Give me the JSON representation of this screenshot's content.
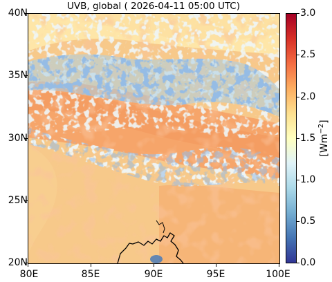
{
  "title": "UVB, global ( 2026-04-11 05:00 UTC)",
  "x_ticks": [
    "80E",
    "85E",
    "90E",
    "95E",
    "100E"
  ],
  "y_ticks": [
    "40N",
    "35N",
    "30N",
    "25N",
    "20N"
  ],
  "colorbar": {
    "label_base": "[Wm",
    "label_exp": "−2",
    "label_close": "]",
    "ticks": [
      "3.0",
      "2.5",
      "2.0",
      "1.5",
      "1.0",
      "0.5",
      "0.0"
    ],
    "range": [
      0.0,
      3.0
    ],
    "colormap": "RdYlBu_r",
    "colors": [
      "#313695",
      "#4575b4",
      "#74add1",
      "#abd9e9",
      "#e0f3f8",
      "#ffffbf",
      "#fee090",
      "#fdae61",
      "#f46d43",
      "#d73027",
      "#a50026"
    ]
  },
  "map": {
    "lon_range": [
      80,
      100
    ],
    "lat_range": [
      20,
      40
    ],
    "background_color": "#f5c27e"
  }
}
